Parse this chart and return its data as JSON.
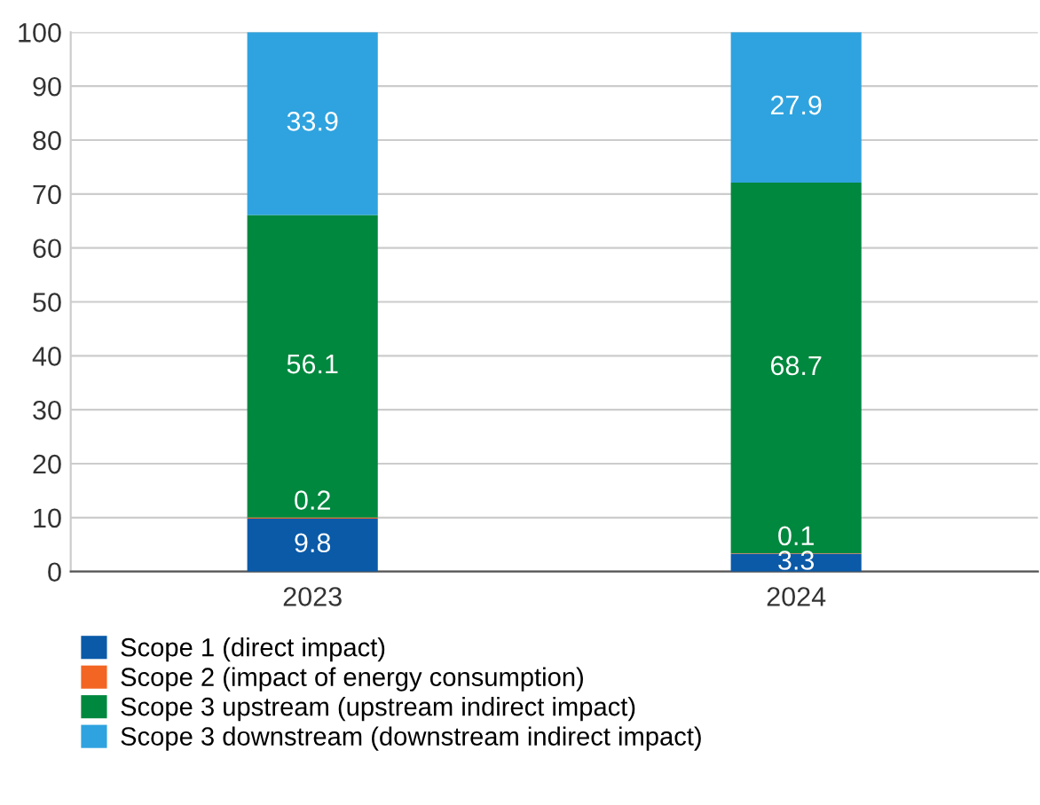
{
  "chart_data": {
    "type": "bar",
    "stacked": true,
    "categories": [
      "2023",
      "2024"
    ],
    "series": [
      {
        "name": "Scope 1 (direct impact)",
        "color": "#0a5aa8",
        "values": [
          9.8,
          3.3
        ]
      },
      {
        "name": "Scope 2 (impact of energy consumption)",
        "color": "#f26522",
        "values": [
          0.2,
          0.1
        ]
      },
      {
        "name": "Scope 3 upstream (upstream indirect impact)",
        "color": "#00883e",
        "values": [
          56.1,
          68.7
        ]
      },
      {
        "name": "Scope 3 downstream (downstream indirect impact)",
        "color": "#2ea3df",
        "values": [
          33.9,
          27.9
        ]
      }
    ],
    "ylim": [
      0,
      100
    ],
    "yticks": [
      0,
      10,
      20,
      30,
      40,
      50,
      60,
      70,
      80,
      90,
      100
    ],
    "grid": "y",
    "legend": "bottom",
    "data_labels": true
  }
}
